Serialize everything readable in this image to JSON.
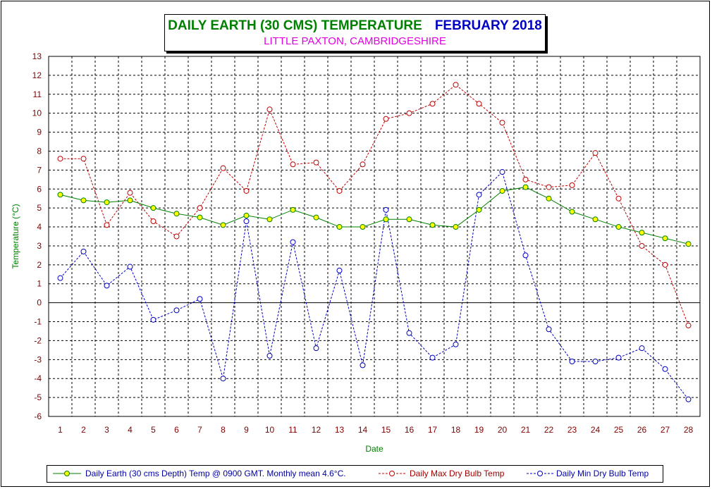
{
  "title": {
    "main": "DAILY EARTH (30 CMS) TEMPERATURE",
    "month": "FEBRUARY 2018",
    "subtitle": "LITTLE PAXTON, CAMBRIDGESHIRE"
  },
  "colors": {
    "title_main": "#008000",
    "title_month": "#0000c0",
    "subtitle": "#e000e0",
    "earth_line": "#008000",
    "earth_marker": "#ffff00",
    "max_series": "#c00000",
    "min_series": "#0000c0",
    "axis_label": "#008000",
    "tick_label": "#800000"
  },
  "chart_data": {
    "type": "line",
    "xlabel": "Date",
    "ylabel": "Temperature (°C)",
    "ylim": [
      -6,
      13
    ],
    "yticks": [
      13,
      12,
      11,
      10,
      9,
      8,
      7,
      6,
      5,
      4,
      3,
      2,
      1,
      0,
      -1,
      -2,
      -3,
      -4,
      -5,
      -6
    ],
    "x": [
      1,
      2,
      3,
      4,
      5,
      6,
      7,
      8,
      9,
      10,
      11,
      12,
      13,
      14,
      15,
      16,
      17,
      18,
      19,
      20,
      21,
      22,
      23,
      24,
      25,
      26,
      27,
      28
    ],
    "grid": true,
    "legend_position": "bottom",
    "series": [
      {
        "name": "Daily Earth (30 cms Depth) Temp @ 0900 GMT. Monthly mean 4.6°C.",
        "style": "solid",
        "values": [
          5.7,
          5.4,
          5.3,
          5.4,
          5.0,
          4.7,
          4.5,
          4.1,
          4.6,
          4.4,
          4.9,
          4.5,
          4.0,
          4.0,
          4.4,
          4.4,
          4.1,
          4.0,
          4.9,
          5.9,
          6.1,
          5.5,
          4.8,
          4.4,
          4.0,
          3.7,
          3.4,
          3.1
        ]
      },
      {
        "name": "Daily Max Dry Bulb Temp",
        "style": "dashed",
        "values": [
          7.6,
          7.6,
          4.1,
          5.8,
          4.3,
          3.5,
          5.0,
          7.1,
          5.9,
          10.2,
          7.3,
          7.4,
          5.9,
          7.3,
          9.7,
          10.0,
          10.5,
          11.5,
          10.5,
          9.5,
          6.5,
          6.1,
          6.2,
          7.9,
          5.5,
          3.0,
          2.0,
          -1.2
        ]
      },
      {
        "name": "Daily Min Dry Bulb Temp",
        "style": "dashed",
        "values": [
          1.3,
          2.7,
          0.9,
          1.9,
          -0.9,
          -0.4,
          0.2,
          -4.0,
          4.3,
          -2.8,
          3.2,
          -2.4,
          1.7,
          -3.3,
          4.9,
          -1.6,
          -2.9,
          -2.2,
          5.7,
          6.9,
          2.5,
          -1.4,
          -3.1,
          -3.1,
          -2.9,
          -2.4,
          -3.5,
          -5.1
        ]
      }
    ]
  }
}
